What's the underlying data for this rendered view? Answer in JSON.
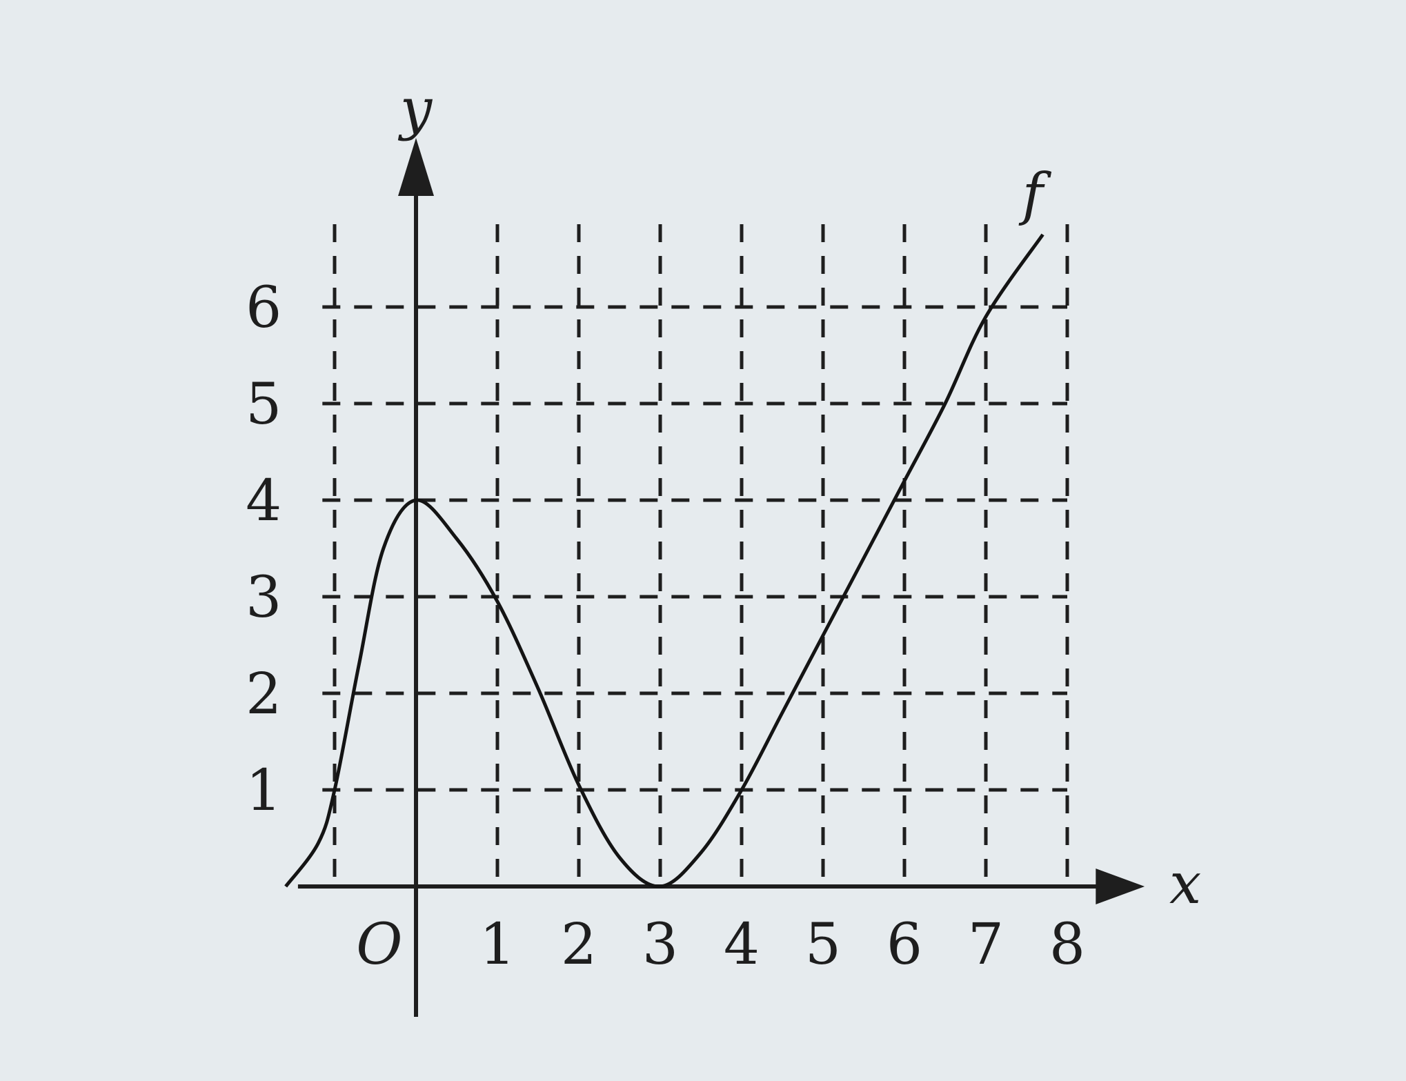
{
  "chart_data": {
    "type": "line",
    "title": "",
    "xlabel": "x",
    "ylabel": "y",
    "origin_label": "O",
    "xlim": [
      -1.75,
      8.6
    ],
    "ylim": [
      -1.55,
      7.2
    ],
    "x_ticks": [
      1,
      2,
      3,
      4,
      5,
      6,
      7,
      8
    ],
    "x_tick_labels": [
      "1",
      "2",
      "3",
      "4",
      "5",
      "6",
      "7",
      "8"
    ],
    "y_ticks": [
      1,
      2,
      3,
      4,
      5,
      6
    ],
    "y_tick_labels": [
      "1",
      "2",
      "3",
      "4",
      "5",
      "6"
    ],
    "grid": true,
    "grid_style": "dashed",
    "series": [
      {
        "name": "f",
        "x": [
          -1.6,
          -1.2,
          -1.0,
          -0.7,
          -0.4,
          0,
          0.5,
          1.0,
          1.5,
          2.0,
          2.5,
          3.0,
          3.5,
          4.0,
          4.5,
          5.0,
          5.5,
          6.0,
          6.5,
          7.0,
          7.7
        ],
        "y": [
          0.0,
          0.45,
          1.0,
          2.3,
          3.5,
          4.0,
          3.6,
          2.95,
          2.05,
          1.05,
          0.3,
          0.0,
          0.35,
          1.0,
          1.8,
          2.6,
          3.4,
          4.2,
          5.0,
          5.9,
          6.75
        ]
      }
    ]
  }
}
